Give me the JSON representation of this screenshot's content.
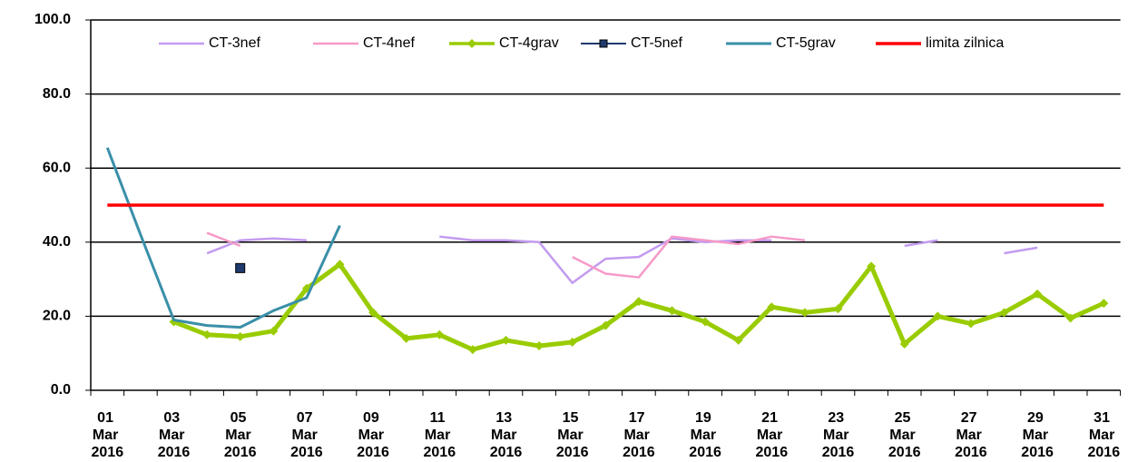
{
  "chart_data": {
    "type": "line",
    "categories": [
      "01 Mar 2016",
      null,
      "03 Mar 2016",
      null,
      "05 Mar 2016",
      null,
      "07 Mar 2016",
      null,
      "09 Mar 2016",
      null,
      "11 Mar 2016",
      null,
      "13 Mar 2016",
      null,
      "15 Mar 2016",
      null,
      "17 Mar 2016",
      null,
      "19 Mar 2016",
      null,
      "21 Mar 2016",
      null,
      "23 Mar 2016",
      null,
      "25 Mar 2016",
      null,
      "27 Mar 2016",
      null,
      "29 Mar 2016",
      null,
      "31 Mar 2016"
    ],
    "series": [
      {
        "name": "CT-3nef",
        "color": "#c39bf0",
        "values": [
          null,
          null,
          null,
          37,
          40.5,
          41,
          40.5,
          null,
          null,
          null,
          41.5,
          40.5,
          40.5,
          40,
          29,
          35.5,
          36,
          41,
          40,
          40.5,
          40.5,
          null,
          null,
          null,
          39,
          40.5,
          null,
          37,
          38.5,
          null,
          null
        ]
      },
      {
        "name": "CT-4nef",
        "color": "#f59ac8",
        "values": [
          null,
          null,
          null,
          42.5,
          39,
          null,
          null,
          null,
          null,
          null,
          null,
          null,
          null,
          null,
          36,
          31.5,
          30.5,
          41.5,
          40.5,
          39.5,
          41.5,
          40.5,
          null,
          null,
          null,
          null,
          null,
          null,
          null,
          null,
          null
        ]
      },
      {
        "name": "CT-4grav",
        "color": "#99cc00",
        "marker": "diamond",
        "values": [
          null,
          null,
          18.5,
          15,
          14.5,
          16,
          27.5,
          34,
          21,
          14,
          15,
          11,
          13.5,
          12,
          13,
          17.5,
          24,
          21.5,
          18.5,
          13.5,
          22.5,
          21,
          22,
          33.5,
          12.5,
          20,
          18,
          21,
          26,
          19.5,
          23.5
        ]
      },
      {
        "name": "CT-5nef",
        "color": "#1f3a6e",
        "marker": "square",
        "values": [
          null,
          null,
          null,
          null,
          33,
          null,
          null,
          null,
          null,
          null,
          null,
          null,
          null,
          null,
          null,
          null,
          null,
          null,
          null,
          null,
          null,
          null,
          null,
          null,
          null,
          null,
          null,
          null,
          null,
          null,
          null
        ]
      },
      {
        "name": "CT-5grav",
        "color": "#3a8fa8",
        "values": [
          65.5,
          42,
          19,
          17.5,
          17,
          21.5,
          25,
          44.5,
          null,
          null,
          null,
          null,
          null,
          null,
          null,
          null,
          null,
          null,
          null,
          null,
          null,
          null,
          null,
          null,
          null,
          null,
          null,
          null,
          null,
          null,
          null
        ]
      },
      {
        "name": "limita zilnica",
        "color": "#ff0000",
        "values": [
          50,
          50,
          50,
          50,
          50,
          50,
          50,
          50,
          50,
          50,
          50,
          50,
          50,
          50,
          50,
          50,
          50,
          50,
          50,
          50,
          50,
          50,
          50,
          50,
          50,
          50,
          50,
          50,
          50,
          50,
          50
        ]
      }
    ],
    "ylim": [
      0,
      100
    ],
    "yticks": [
      {
        "value": 0,
        "label": "0.0"
      },
      {
        "value": 20,
        "label": "20.0"
      },
      {
        "value": 40,
        "label": "40.0"
      },
      {
        "value": 60,
        "label": "60.0"
      },
      {
        "value": 80,
        "label": "80.0"
      },
      {
        "value": 100,
        "label": "100.0"
      }
    ],
    "grid": true,
    "legend": "top"
  }
}
